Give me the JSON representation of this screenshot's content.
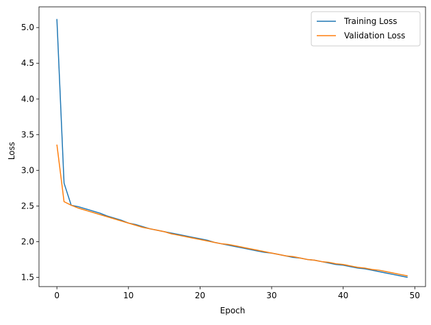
{
  "chart_data": {
    "type": "line",
    "title": "",
    "xlabel": "Epoch",
    "ylabel": "Loss",
    "xlim": [
      -2.5,
      51.5
    ],
    "ylim": [
      1.37,
      5.29
    ],
    "x_ticks": [
      0,
      10,
      20,
      30,
      40,
      50
    ],
    "x_tick_labels": [
      "0",
      "10",
      "20",
      "30",
      "40",
      "50"
    ],
    "y_ticks": [
      1.5,
      2.0,
      2.5,
      3.0,
      3.5,
      4.0,
      4.5,
      5.0
    ],
    "y_tick_labels": [
      "1.5",
      "2.0",
      "2.5",
      "3.0",
      "3.5",
      "4.0",
      "4.5",
      "5.0"
    ],
    "grid": false,
    "legend_position": "top-right",
    "series": [
      {
        "name": "Training Loss",
        "color": "#1f77b4",
        "x": [
          0,
          1,
          2,
          3,
          4,
          5,
          6,
          7,
          8,
          9,
          10,
          11,
          12,
          13,
          14,
          15,
          16,
          17,
          18,
          19,
          20,
          21,
          22,
          23,
          24,
          25,
          26,
          27,
          28,
          29,
          30,
          31,
          32,
          33,
          34,
          35,
          36,
          37,
          38,
          39,
          40,
          41,
          42,
          43,
          44,
          45,
          46,
          47,
          48,
          49
        ],
        "values": [
          5.12,
          2.82,
          2.51,
          2.49,
          2.46,
          2.43,
          2.4,
          2.36,
          2.33,
          2.3,
          2.26,
          2.24,
          2.21,
          2.18,
          2.16,
          2.14,
          2.12,
          2.1,
          2.08,
          2.06,
          2.04,
          2.02,
          1.99,
          1.97,
          1.95,
          1.93,
          1.91,
          1.89,
          1.87,
          1.85,
          1.84,
          1.82,
          1.8,
          1.78,
          1.77,
          1.75,
          1.74,
          1.72,
          1.7,
          1.68,
          1.67,
          1.65,
          1.63,
          1.62,
          1.6,
          1.58,
          1.56,
          1.54,
          1.52,
          1.5
        ]
      },
      {
        "name": "Validation Loss",
        "color": "#ff7f0e",
        "x": [
          0,
          1,
          2,
          3,
          4,
          5,
          6,
          7,
          8,
          9,
          10,
          11,
          12,
          13,
          14,
          15,
          16,
          17,
          18,
          19,
          20,
          21,
          22,
          23,
          24,
          25,
          26,
          27,
          28,
          29,
          30,
          31,
          32,
          33,
          34,
          35,
          36,
          37,
          38,
          39,
          40,
          41,
          42,
          43,
          44,
          45,
          46,
          47,
          48,
          49
        ],
        "values": [
          3.36,
          2.56,
          2.51,
          2.47,
          2.44,
          2.41,
          2.38,
          2.35,
          2.32,
          2.29,
          2.26,
          2.23,
          2.2,
          2.18,
          2.16,
          2.14,
          2.11,
          2.09,
          2.07,
          2.05,
          2.03,
          2.01,
          1.99,
          1.97,
          1.96,
          1.94,
          1.92,
          1.9,
          1.88,
          1.86,
          1.84,
          1.82,
          1.8,
          1.79,
          1.77,
          1.75,
          1.74,
          1.72,
          1.71,
          1.69,
          1.68,
          1.66,
          1.64,
          1.63,
          1.61,
          1.6,
          1.58,
          1.56,
          1.54,
          1.52
        ]
      }
    ]
  }
}
